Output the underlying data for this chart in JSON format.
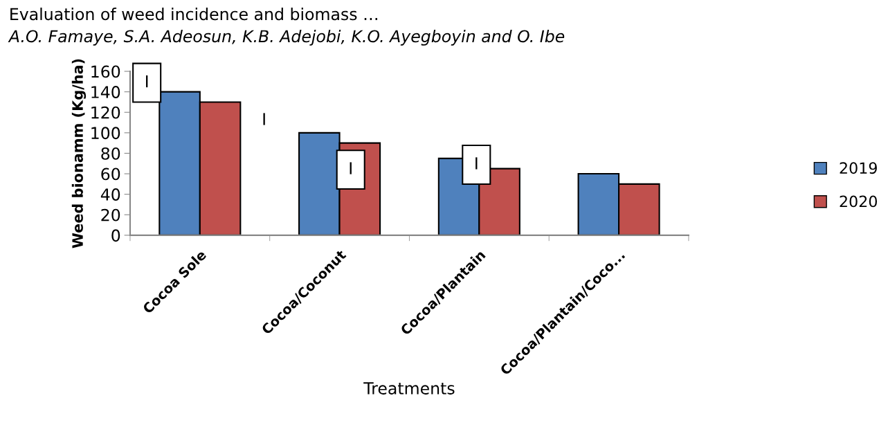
{
  "chart_data": {
    "type": "bar",
    "xlabel": "Treatments",
    "ylabel": "Weed bionamm (Kg/ha)",
    "categories": [
      "Cocoa Sole",
      "Cocoa/Coconut",
      "Cocoa/Plantain",
      "Cocoa/Plantain/Coco..."
    ],
    "series": [
      {
        "name": "2019",
        "color": "#4f81bd",
        "values": [
          140,
          100,
          75,
          60
        ]
      },
      {
        "name": "2020",
        "color": "#c0504d",
        "values": [
          130,
          90,
          65,
          50
        ]
      }
    ],
    "ylim": [
      0,
      160
    ],
    "yticks": [
      0,
      20,
      40,
      60,
      80,
      100,
      120,
      140,
      160
    ],
    "grid": false,
    "legend": "right",
    "annotations": [
      "Evaluation of weed incidence and biomass …",
      "A.O. Famaye, S.A. Adeosun, K.B. Adejobi, K.O. Ayegboyin and O. Ibe",
      "I",
      "I",
      "I",
      "I"
    ]
  }
}
